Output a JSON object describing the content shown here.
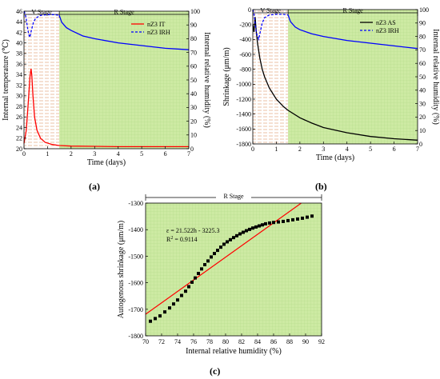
{
  "panels": {
    "a": "(a)",
    "b": "(b)",
    "c": "(c)"
  },
  "colors": {
    "it": "#ff0000",
    "irh": "#0000ff",
    "as": "#000000",
    "fit": "#ff0000",
    "r_fill": "#cdeaa3",
    "v_hatch": "#e6b08e"
  },
  "chart_data": [
    {
      "type": "line",
      "panel": "(a)",
      "xlabel": "Time (days)",
      "ylabel": "Internal temperature (℃)",
      "ylabel_right": "Internal relative humidity (%)",
      "xlim": [
        0,
        7
      ],
      "ylim": [
        20,
        46
      ],
      "ylim_right": [
        0,
        100
      ],
      "xticks": [
        "0",
        "1",
        "2",
        "3",
        "4",
        "5",
        "6",
        "7"
      ],
      "yticks": [
        "20",
        "22",
        "24",
        "26",
        "28",
        "30",
        "32",
        "34",
        "36",
        "38",
        "40",
        "42",
        "44",
        "46"
      ],
      "yticks_right": [
        "0",
        "10",
        "20",
        "30",
        "40",
        "50",
        "60",
        "70",
        "80",
        "90",
        "100"
      ],
      "stages": [
        {
          "label": "V Stage",
          "from": 0,
          "to": 1.5
        },
        {
          "label": "R Stage",
          "from": 1.5,
          "to": 7
        }
      ],
      "legend": "top-right",
      "series": [
        {
          "name": "nZ3 IT",
          "axis": "left",
          "style": "solid",
          "x": [
            0,
            0.1,
            0.2,
            0.25,
            0.3,
            0.33,
            0.38,
            0.45,
            0.55,
            0.7,
            0.9,
            1.2,
            1.5,
            2,
            3,
            4,
            5,
            6,
            7
          ],
          "y": [
            21,
            23.5,
            30,
            33.5,
            35.1,
            34,
            30,
            26,
            23.5,
            22,
            21.2,
            20.8,
            20.6,
            20.5,
            20.45,
            20.4,
            20.4,
            20.4,
            20.4
          ]
        },
        {
          "name": "nZ3 IRH",
          "axis": "right",
          "style": "dashed",
          "x": [
            0,
            0.05,
            0.1,
            0.15,
            0.2,
            0.25,
            0.3,
            0.4,
            0.5,
            0.7,
            1,
            1.3,
            1.5
          ],
          "y": [
            100,
            98,
            94,
            88,
            83,
            81,
            85,
            92,
            95,
            97,
            97.5,
            97.5,
            97
          ]
        },
        {
          "name": "",
          "axis": "right",
          "style": "solid",
          "x": [
            1.5,
            1.6,
            1.8,
            2,
            2.5,
            3,
            4,
            5,
            6,
            7
          ],
          "y": [
            97,
            92,
            88,
            86,
            82,
            80,
            77,
            75,
            73,
            72
          ]
        }
      ]
    },
    {
      "type": "line",
      "panel": "(b)",
      "xlabel": "Time (days)",
      "ylabel": "Shrinkage (μm/m)",
      "ylabel_right": "Internal relative humidity (%)",
      "xlim": [
        0,
        7
      ],
      "ylim": [
        -1800,
        0
      ],
      "ylim_right": [
        0,
        100
      ],
      "xticks": [
        "0",
        "1",
        "2",
        "3",
        "4",
        "5",
        "6",
        "7"
      ],
      "yticks": [
        "-1800",
        "-1600",
        "-1400",
        "-1200",
        "-1000",
        "-800",
        "-600",
        "-400",
        "-200",
        "0"
      ],
      "yticks_right": [
        "0",
        "10",
        "20",
        "30",
        "40",
        "50",
        "60",
        "70",
        "80",
        "90",
        "100"
      ],
      "stages": [
        {
          "label": "V Stage",
          "from": 0,
          "to": 1.5
        },
        {
          "label": "R Stage",
          "from": 1.5,
          "to": 7
        }
      ],
      "legend": "top-right",
      "series": [
        {
          "name": "nZ3 AS",
          "axis": "left",
          "style": "solid",
          "x": [
            0,
            0.05,
            0.1,
            0.15,
            0.2,
            0.3,
            0.4,
            0.5,
            0.7,
            1,
            1.3,
            1.5,
            2,
            2.5,
            3,
            4,
            5,
            6,
            7
          ],
          "y": [
            -200,
            -300,
            -100,
            -300,
            -450,
            -650,
            -800,
            -900,
            -1050,
            -1200,
            -1300,
            -1350,
            -1450,
            -1520,
            -1580,
            -1650,
            -1700,
            -1730,
            -1750
          ]
        },
        {
          "name": "nZ3 IRH",
          "axis": "right",
          "style": "dashed",
          "x": [
            0,
            0.05,
            0.1,
            0.15,
            0.2,
            0.25,
            0.3,
            0.4,
            0.5,
            0.7,
            1,
            1.3,
            1.5
          ],
          "y": [
            100,
            97,
            90,
            83,
            80,
            78,
            82,
            90,
            94,
            96,
            96.5,
            96.5,
            96
          ]
        },
        {
          "name": "",
          "axis": "right",
          "style": "solid",
          "x": [
            1.5,
            1.6,
            1.8,
            2,
            2.5,
            3,
            4,
            5,
            6,
            7
          ],
          "y": [
            96,
            91,
            87,
            85,
            82,
            80,
            77,
            75,
            73,
            71
          ]
        }
      ]
    },
    {
      "type": "scatter",
      "panel": "(c)",
      "xlabel": "Internal relative humidity (%)",
      "ylabel": "Autogenous shrinkage (μm/m)",
      "xlim": [
        70,
        92
      ],
      "ylim": [
        -1800,
        -1300
      ],
      "xticks": [
        "70",
        "72",
        "74",
        "76",
        "78",
        "80",
        "82",
        "84",
        "86",
        "88",
        "90",
        "92"
      ],
      "yticks": [
        "-1800",
        "-1700",
        "-1600",
        "-1500",
        "-1400",
        "-1300"
      ],
      "stages": [
        {
          "label": "R Stage",
          "from": 70,
          "to": 92
        }
      ],
      "equation": "ε = 21.522h - 3225.3",
      "r2_label": "R",
      "r2_value": "= 0.9114",
      "fit": {
        "slope": 21.522,
        "intercept": -3225.3
      },
      "points": {
        "x": [
          70.6,
          71.2,
          71.8,
          72.4,
          73.0,
          73.5,
          74.0,
          74.5,
          75.0,
          75.4,
          75.8,
          76.2,
          76.6,
          77.0,
          77.4,
          77.8,
          78.2,
          78.6,
          79.0,
          79.4,
          79.8,
          80.2,
          80.6,
          81.0,
          81.4,
          81.8,
          82.2,
          82.6,
          83.0,
          83.4,
          83.8,
          84.2,
          84.6,
          85.0,
          85.5,
          86.0,
          86.6,
          87.2,
          87.8,
          88.4,
          89.0,
          89.6,
          90.2,
          90.8
        ],
        "y": [
          -1745,
          -1735,
          -1725,
          -1710,
          -1695,
          -1680,
          -1665,
          -1648,
          -1632,
          -1615,
          -1598,
          -1582,
          -1565,
          -1548,
          -1532,
          -1518,
          -1503,
          -1490,
          -1478,
          -1466,
          -1455,
          -1446,
          -1438,
          -1430,
          -1423,
          -1416,
          -1410,
          -1404,
          -1399,
          -1394,
          -1390,
          -1386,
          -1382,
          -1378,
          -1375,
          -1373,
          -1371,
          -1369,
          -1366,
          -1363,
          -1360,
          -1357,
          -1353,
          -1349
        ]
      }
    }
  ]
}
